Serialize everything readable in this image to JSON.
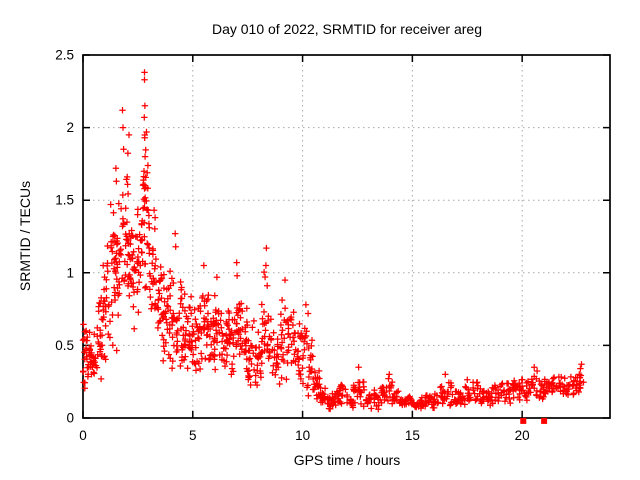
{
  "chart_data": {
    "type": "scatter",
    "title": "Day 010 of 2022, SRMTID for receiver areg",
    "xlabel": "GPS time / hours",
    "ylabel": "SRMTID / TECUs",
    "xlim": [
      0,
      24
    ],
    "ylim": [
      0,
      2.5
    ],
    "xticks": [
      0,
      5,
      10,
      15,
      20
    ],
    "yticks": [
      0,
      0.5,
      1,
      1.5,
      2,
      2.5
    ],
    "grid": true,
    "legend": "none",
    "marker": "plus",
    "marker_color": "#ff0000",
    "grid_color": "#a8a8a8",
    "border_color": "#000000",
    "background_color": "#ffffff",
    "density_bins_format": [
      "t_start_hours",
      "t_end_hours",
      "y_min_tecu",
      "y_max_tecu",
      "point_count"
    ],
    "density_bins": [
      [
        0.0,
        0.3,
        0.1,
        0.78,
        26
      ],
      [
        0.3,
        0.6,
        0.15,
        0.62,
        22
      ],
      [
        0.6,
        0.9,
        0.2,
        0.92,
        22
      ],
      [
        0.9,
        1.2,
        0.3,
        1.3,
        26
      ],
      [
        1.2,
        1.5,
        0.33,
        1.58,
        26
      ],
      [
        1.5,
        1.8,
        0.35,
        1.75,
        26
      ],
      [
        1.8,
        2.1,
        0.5,
        2.05,
        28
      ],
      [
        2.1,
        2.4,
        0.55,
        1.5,
        26
      ],
      [
        2.4,
        2.7,
        0.6,
        1.65,
        26
      ],
      [
        2.7,
        3.0,
        0.7,
        2.2,
        30
      ],
      [
        3.0,
        3.3,
        0.55,
        1.55,
        26
      ],
      [
        3.3,
        3.6,
        0.4,
        1.25,
        24
      ],
      [
        3.6,
        3.9,
        0.2,
        1.05,
        22
      ],
      [
        3.9,
        4.2,
        0.15,
        1.1,
        22
      ],
      [
        4.2,
        4.5,
        0.2,
        1.05,
        22
      ],
      [
        4.5,
        4.8,
        0.22,
        0.95,
        22
      ],
      [
        4.8,
        5.1,
        0.25,
        0.9,
        22
      ],
      [
        5.1,
        5.4,
        0.28,
        0.92,
        20
      ],
      [
        5.4,
        5.7,
        0.3,
        1.0,
        22
      ],
      [
        5.7,
        6.0,
        0.25,
        0.95,
        20
      ],
      [
        6.0,
        6.3,
        0.25,
        0.95,
        20
      ],
      [
        6.3,
        6.6,
        0.22,
        0.85,
        20
      ],
      [
        6.6,
        6.9,
        0.2,
        0.9,
        20
      ],
      [
        6.9,
        7.2,
        0.25,
        1.0,
        22
      ],
      [
        7.2,
        7.5,
        0.22,
        0.9,
        20
      ],
      [
        7.5,
        7.8,
        0.15,
        0.75,
        18
      ],
      [
        7.8,
        8.1,
        0.12,
        0.7,
        18
      ],
      [
        8.1,
        8.4,
        0.2,
        1.05,
        20
      ],
      [
        8.4,
        8.7,
        0.15,
        0.8,
        16
      ],
      [
        8.7,
        9.0,
        0.15,
        0.6,
        14
      ],
      [
        9.0,
        9.3,
        0.2,
        0.92,
        18
      ],
      [
        9.3,
        9.6,
        0.2,
        0.85,
        18
      ],
      [
        9.6,
        9.9,
        0.18,
        0.7,
        18
      ],
      [
        9.9,
        10.2,
        0.15,
        0.78,
        18
      ],
      [
        10.2,
        10.5,
        0.1,
        0.7,
        18
      ],
      [
        10.5,
        10.8,
        0.06,
        0.4,
        16
      ],
      [
        10.8,
        11.1,
        0.05,
        0.25,
        16
      ],
      [
        11.1,
        11.4,
        0.04,
        0.18,
        14
      ],
      [
        11.4,
        11.7,
        0.05,
        0.22,
        14
      ],
      [
        11.7,
        12.0,
        0.05,
        0.28,
        14
      ],
      [
        12.0,
        12.3,
        0.05,
        0.2,
        12
      ],
      [
        12.3,
        12.6,
        0.06,
        0.32,
        14
      ],
      [
        12.6,
        12.9,
        0.06,
        0.28,
        12
      ],
      [
        12.9,
        13.2,
        0.05,
        0.18,
        12
      ],
      [
        13.2,
        13.5,
        0.05,
        0.2,
        12
      ],
      [
        13.5,
        13.8,
        0.06,
        0.28,
        12
      ],
      [
        13.8,
        14.1,
        0.06,
        0.3,
        12
      ],
      [
        14.1,
        14.4,
        0.05,
        0.22,
        12
      ],
      [
        14.4,
        14.7,
        0.05,
        0.18,
        12
      ],
      [
        14.7,
        15.0,
        0.04,
        0.16,
        12
      ],
      [
        15.0,
        15.3,
        0.04,
        0.15,
        12
      ],
      [
        15.3,
        15.6,
        0.04,
        0.16,
        12
      ],
      [
        15.6,
        15.9,
        0.05,
        0.18,
        12
      ],
      [
        15.9,
        16.2,
        0.05,
        0.2,
        12
      ],
      [
        16.2,
        16.5,
        0.06,
        0.28,
        12
      ],
      [
        16.5,
        16.8,
        0.06,
        0.3,
        12
      ],
      [
        16.8,
        17.1,
        0.06,
        0.22,
        12
      ],
      [
        17.1,
        17.4,
        0.06,
        0.22,
        12
      ],
      [
        17.4,
        17.7,
        0.08,
        0.28,
        12
      ],
      [
        17.7,
        18.0,
        0.08,
        0.3,
        12
      ],
      [
        18.0,
        18.3,
        0.06,
        0.25,
        12
      ],
      [
        18.3,
        18.6,
        0.06,
        0.22,
        12
      ],
      [
        18.6,
        18.9,
        0.08,
        0.24,
        12
      ],
      [
        18.9,
        19.2,
        0.08,
        0.26,
        12
      ],
      [
        19.2,
        19.5,
        0.08,
        0.28,
        12
      ],
      [
        19.5,
        19.8,
        0.1,
        0.32,
        12
      ],
      [
        19.8,
        20.1,
        0.1,
        0.3,
        12
      ],
      [
        20.1,
        20.4,
        0.08,
        0.28,
        12
      ],
      [
        20.4,
        20.7,
        0.1,
        0.35,
        12
      ],
      [
        20.7,
        21.0,
        0.08,
        0.28,
        12
      ],
      [
        21.0,
        21.3,
        0.1,
        0.3,
        12
      ],
      [
        21.3,
        21.6,
        0.12,
        0.32,
        12
      ],
      [
        21.6,
        21.9,
        0.12,
        0.3,
        12
      ],
      [
        21.9,
        22.2,
        0.1,
        0.3,
        12
      ],
      [
        22.2,
        22.5,
        0.14,
        0.34,
        12
      ],
      [
        22.5,
        22.8,
        0.16,
        0.37,
        12
      ]
    ],
    "peak_points": [
      [
        0.92,
        1.05
      ],
      [
        1.5,
        1.72
      ],
      [
        1.52,
        1.63
      ],
      [
        1.8,
        2.12
      ],
      [
        1.82,
        2.0
      ],
      [
        2.8,
        2.38
      ],
      [
        2.8,
        2.33
      ],
      [
        2.82,
        2.15
      ],
      [
        2.79,
        2.07
      ],
      [
        2.81,
        1.93
      ],
      [
        2.83,
        1.8
      ],
      [
        2.78,
        1.7
      ],
      [
        2.8,
        1.58
      ],
      [
        2.8,
        1.45
      ],
      [
        4.2,
        1.27
      ],
      [
        4.22,
        1.18
      ],
      [
        5.5,
        1.05
      ],
      [
        6.1,
        0.97
      ],
      [
        7.0,
        1.07
      ],
      [
        7.02,
        0.98
      ],
      [
        8.35,
        1.17
      ],
      [
        8.33,
        1.05
      ],
      [
        9.2,
        0.95
      ],
      [
        10.15,
        0.78
      ],
      [
        10.25,
        0.72
      ],
      [
        12.55,
        0.35
      ],
      [
        13.95,
        0.3
      ],
      [
        16.5,
        0.3
      ],
      [
        20.55,
        0.35
      ],
      [
        22.7,
        0.37
      ],
      [
        22.65,
        0.34
      ],
      [
        22.6,
        0.3
      ]
    ],
    "square_points": [
      [
        20.05,
        -0.02
      ],
      [
        21.0,
        -0.02
      ]
    ]
  }
}
